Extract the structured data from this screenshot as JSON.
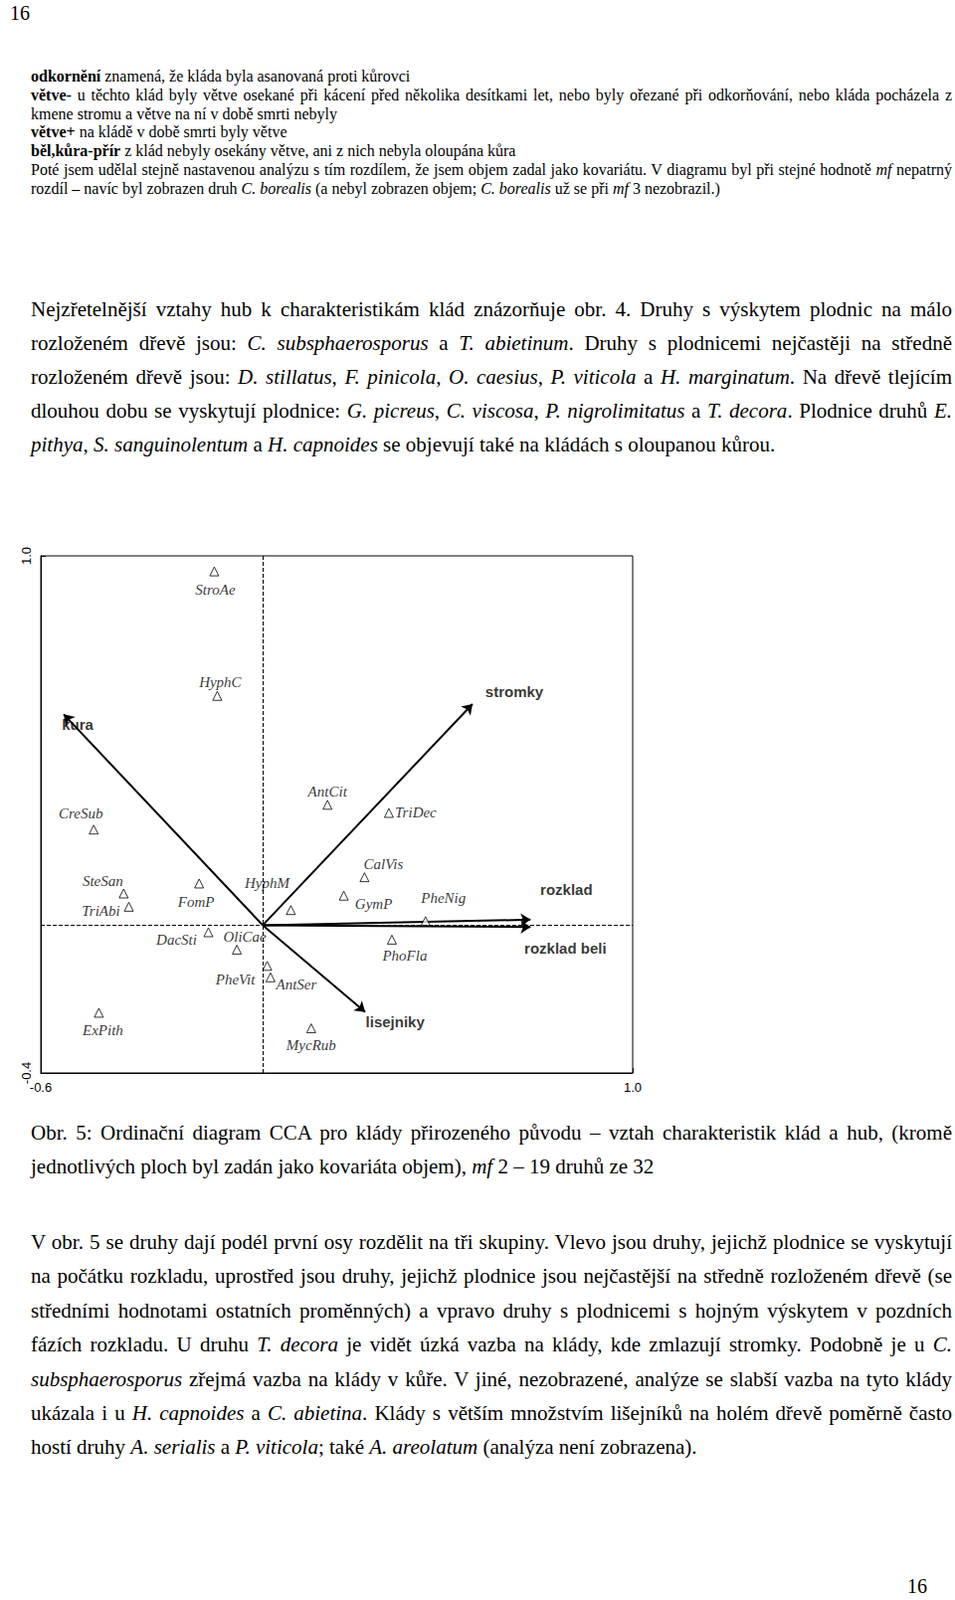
{
  "header": {
    "page": "16"
  },
  "small_text": [
    [
      {
        "t": "odkornění",
        "b": true
      },
      {
        "t": " znamená, že kláda byla asanovaná proti kůrovci"
      }
    ],
    [
      {
        "t": "větve-",
        "b": true
      },
      {
        "t": " u těchto klád byly větve osekané při kácení před několika desítkami let, nebo byly ořezané při odkorňování, nebo kláda pocházela z kmene stromu a větve na ní v době smrti nebyly"
      }
    ],
    [
      {
        "t": "větve+",
        "b": true
      },
      {
        "t": " na kládě v době smrti byly větve"
      }
    ],
    [
      {
        "t": "běl,kůra-přír",
        "b": true
      },
      {
        "t": " z klád nebyly osekány větve, ani z nich nebyla oloupána kůra"
      }
    ],
    [
      {
        "t": "Poté jsem udělal stejně nastavenou analýzu s tím rozdílem, že jsem objem zadal jako kovariátu. V diagramu byl při stejné hodnotě "
      },
      {
        "t": "mf",
        "i": true
      },
      {
        "t": " nepatrný rozdíl – navíc byl zobrazen druh "
      },
      {
        "t": "C. borealis",
        "i": true
      },
      {
        "t": " (a nebyl zobrazen objem; "
      },
      {
        "t": "C. borealis",
        "i": true
      },
      {
        "t": " už se při "
      },
      {
        "t": "mf",
        "i": true
      },
      {
        "t": " 3 nezobrazil.)"
      }
    ]
  ],
  "paragraph_1": [
    {
      "t": "Nejzřetelnější vztahy hub k charakteristikám klád znázorňuje obr. 4. Druhy s výskytem plodnic na málo rozloženém dřevě jsou: "
    },
    {
      "t": "C. subsphaerosporus",
      "i": true
    },
    {
      "t": " a "
    },
    {
      "t": "T. abietinum",
      "i": true
    },
    {
      "t": ". Druhy s plodnicemi nejčastěji na středně rozloženém dřevě jsou: "
    },
    {
      "t": "D. stillatus",
      "i": true
    },
    {
      "t": ", "
    },
    {
      "t": "F. pinicola",
      "i": true
    },
    {
      "t": ", "
    },
    {
      "t": "O. caesius",
      "i": true
    },
    {
      "t": ", "
    },
    {
      "t": "P. viticola",
      "i": true
    },
    {
      "t": " a "
    },
    {
      "t": "H. marginatum",
      "i": true
    },
    {
      "t": ". Na dřevě tlejícím dlouhou dobu se vyskytují plodnice: "
    },
    {
      "t": "G. picreus",
      "i": true
    },
    {
      "t": ", "
    },
    {
      "t": "C. viscosa",
      "i": true
    },
    {
      "t": ", "
    },
    {
      "t": "P. nigrolimitatus",
      "i": true
    },
    {
      "t": " a "
    },
    {
      "t": "T. decora",
      "i": true
    },
    {
      "t": ". Plodnice druhů "
    },
    {
      "t": "E. pithya",
      "i": true
    },
    {
      "t": ", "
    },
    {
      "t": "S. sanguinolentum",
      "i": true
    },
    {
      "t": " a "
    },
    {
      "t": "H. capnoides",
      "i": true
    },
    {
      "t": " se objevují také na kládách s oloupanou kůrou."
    }
  ],
  "chart_data": {
    "type": "scatter",
    "marker": "triangle",
    "grid": false,
    "xlim": [
      -0.6,
      1.0
    ],
    "ylim": [
      -0.4,
      1.0
    ],
    "xticks": [
      -0.6,
      {
        "value": 1.0,
        "label": "1.0"
      }
    ],
    "yticks": [
      -0.4,
      {
        "value": 1.0,
        "label": "1.0"
      }
    ],
    "points": [
      {
        "label": "StroAe",
        "x": -0.131,
        "y": 0.958
      },
      {
        "label": "HyphC",
        "x": -0.123,
        "y": 0.621
      },
      {
        "label": "CreSub",
        "x": -0.457,
        "y": 0.259
      },
      {
        "label": "AntCit",
        "x": 0.175,
        "y": 0.326
      },
      {
        "label": "TriDec",
        "x": 0.341,
        "y": 0.304
      },
      {
        "label": "CalVis",
        "x": 0.275,
        "y": 0.13
      },
      {
        "label": "GymP",
        "x": 0.219,
        "y": 0.08
      },
      {
        "label": "PheNig",
        "x": 0.44,
        "y": 0.011
      },
      {
        "label": "PhoFla",
        "x": 0.349,
        "y": -0.039
      },
      {
        "label": "SteSan",
        "x": -0.376,
        "y": 0.086
      },
      {
        "label": "TriAbi",
        "x": -0.362,
        "y": 0.05
      },
      {
        "label": "FomP",
        "x": -0.172,
        "y": 0.113
      },
      {
        "label": "HyphM",
        "x": 0.076,
        "y": 0.041
      },
      {
        "label": "DacSti",
        "x": -0.147,
        "y": -0.019
      },
      {
        "label": "OliCae",
        "x": -0.07,
        "y": -0.066
      },
      {
        "label": "PheVit",
        "x": 0.012,
        "y": -0.11
      },
      {
        "label": "AntSer",
        "x": 0.021,
        "y": -0.141
      },
      {
        "label": "ExPith",
        "x": -0.443,
        "y": -0.237
      },
      {
        "label": "MycRub",
        "x": 0.131,
        "y": -0.279
      }
    ],
    "arrows": [
      {
        "label": "kura",
        "x": -0.538,
        "y": 0.571
      },
      {
        "label": "stromky",
        "x": 0.567,
        "y": 0.599
      },
      {
        "label": "rozklad",
        "x": 0.724,
        "y": 0.015
      },
      {
        "label": "rozklad beli",
        "x": 0.724,
        "y": -0.005
      },
      {
        "label": "lisejniky",
        "x": 0.277,
        "y": -0.235
      }
    ]
  },
  "caption": [
    {
      "t": "Obr. 5: Ordinační diagram CCA pro klády přirozeného původu – vztah charakteristik klád a hub, (kromě jednotlivých ploch byl zadán jako kovariáta objem), "
    },
    {
      "t": "mf",
      "i": true
    },
    {
      "t": " 2 – 19 druhů ze 32"
    }
  ],
  "paragraph_2": [
    {
      "t": "V obr. 5 se druhy dají podél první osy rozdělit na tři skupiny. Vlevo jsou druhy, jejichž plodnice se vyskytují na počátku rozkladu, uprostřed jsou druhy, jejichž plodnice jsou nejčastější na středně rozloženém dřevě (se středními hodnotami ostatních proměnných) a vpravo druhy s plodnicemi s hojným výskytem v pozdních fázích rozkladu. U druhu "
    },
    {
      "t": "T. decora",
      "i": true
    },
    {
      "t": " je vidět úzká vazba na klády, kde zmlazují stromky. Podobně je u "
    },
    {
      "t": "C. subsphaerosporus",
      "i": true
    },
    {
      "t": " zřejmá vazba na klády v kůře. V jiné, nezobrazené, analýze se slabší vazba na tyto klády ukázala i u "
    },
    {
      "t": "H. capnoides",
      "i": true
    },
    {
      "t": " a "
    },
    {
      "t": "C. abietina",
      "i": true
    },
    {
      "t": ". Klády s větším množstvím lišejníků na holém dřevě poměrně často hostí druhy "
    },
    {
      "t": "A. serialis",
      "i": true
    },
    {
      "t": " a "
    },
    {
      "t": "P. viticola",
      "i": true
    },
    {
      "t": "; také "
    },
    {
      "t": "A. areolatum",
      "i": true
    },
    {
      "t": " (analýza není zobrazena)."
    }
  ],
  "footer": {
    "page": "16"
  }
}
